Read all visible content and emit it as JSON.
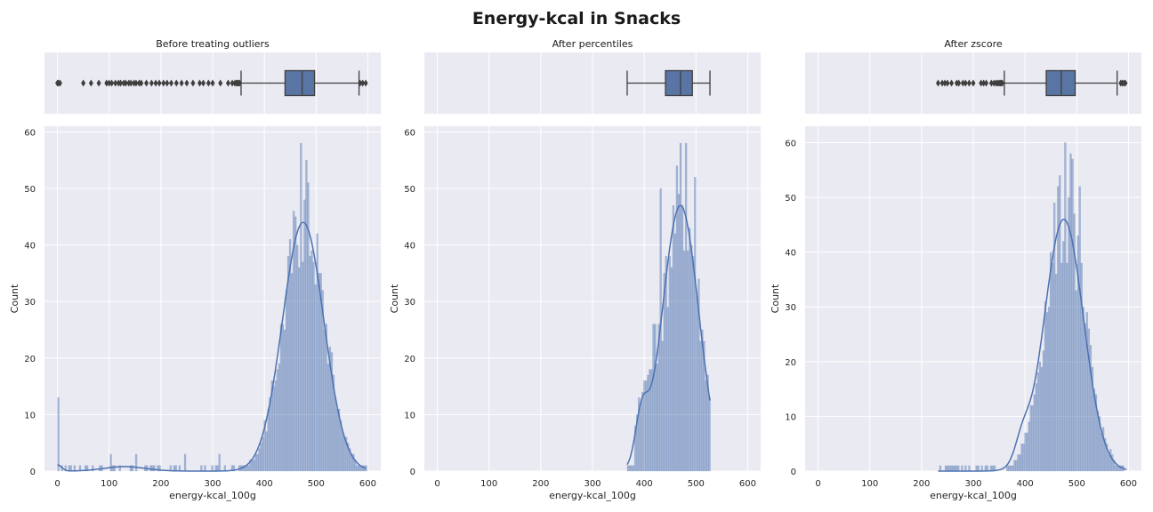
{
  "figure": {
    "title": "Energy-kcal in Snacks"
  },
  "colors": {
    "axes_background": "#eaeaf2",
    "grid": "#ffffff",
    "series": "#4c72b0",
    "box_fill": "#5975a4",
    "box_edge": "#3f3f3f"
  },
  "chart_data": [
    {
      "type": "box+histogram",
      "title": "Before treating outliers",
      "xlabel": "energy-kcal_100g",
      "ylabel": "Count",
      "xlim": [
        -25,
        625
      ],
      "ylim": [
        0,
        61
      ],
      "xticks": [
        0,
        100,
        200,
        300,
        400,
        500,
        600
      ],
      "yticks": [
        0,
        10,
        20,
        30,
        40,
        50,
        60
      ],
      "grid": true,
      "box": {
        "whislo": 355,
        "q1": 440,
        "median": 473,
        "q3": 497,
        "whishi": 583
      },
      "fliers": [
        0,
        2,
        5,
        50,
        65,
        80,
        95,
        100,
        105,
        112,
        118,
        122,
        128,
        132,
        138,
        142,
        148,
        152,
        158,
        162,
        172,
        182,
        190,
        197,
        205,
        212,
        220,
        230,
        240,
        250,
        262,
        275,
        282,
        292,
        300,
        315,
        330,
        338,
        343,
        346,
        348,
        350,
        352,
        585,
        590,
        596
      ],
      "peak": {
        "mean": 475,
        "sd": 40,
        "amplitude": 44
      },
      "kde_peak": 44,
      "histogram_spikes": [
        [
          1,
          13
        ],
        [
          100,
          3
        ],
        [
          150,
          3
        ],
        [
          245,
          3
        ],
        [
          313,
          3
        ],
        [
          470,
          58
        ],
        [
          480,
          55
        ]
      ]
    },
    {
      "type": "box+histogram",
      "title": "After percentiles",
      "xlabel": "energy-kcal_100g",
      "ylabel": "Count",
      "xlim": [
        -25,
        625
      ],
      "ylim": [
        0,
        61
      ],
      "xticks": [
        0,
        100,
        200,
        300,
        400,
        500,
        600
      ],
      "yticks": [
        0,
        10,
        20,
        30,
        40,
        50,
        60
      ],
      "grid": true,
      "box": {
        "whislo": 367,
        "q1": 441,
        "median": 470,
        "q3": 493,
        "whishi": 527
      },
      "fliers": [],
      "peak": {
        "mean": 470,
        "sd": 35,
        "amplitude": 47
      },
      "kde_peak": 47,
      "histogram_spikes": [
        [
          430,
          50
        ],
        [
          470,
          58
        ],
        [
          480,
          58
        ],
        [
          497,
          52
        ]
      ]
    },
    {
      "type": "box+histogram",
      "title": "After zscore",
      "xlabel": "energy-kcal_100g",
      "ylabel": "Count",
      "xlim": [
        -25,
        625
      ],
      "ylim": [
        0,
        63
      ],
      "xticks": [
        0,
        100,
        200,
        300,
        400,
        500,
        600
      ],
      "yticks": [
        0,
        10,
        20,
        30,
        40,
        50,
        60
      ],
      "grid": true,
      "box": {
        "whislo": 360,
        "q1": 441,
        "median": 470,
        "q3": 497,
        "whishi": 578
      },
      "fliers": [
        232,
        240,
        245,
        250,
        258,
        268,
        272,
        280,
        285,
        292,
        300,
        315,
        320,
        325,
        335,
        340,
        344,
        347,
        350,
        352,
        354,
        356,
        585,
        588,
        591,
        594
      ],
      "peak": {
        "mean": 475,
        "sd": 38,
        "amplitude": 46
      },
      "kde_peak": 46,
      "histogram_spikes": [
        [
          475,
          60
        ],
        [
          485,
          58
        ],
        [
          490,
          57
        ],
        [
          505,
          52
        ]
      ]
    }
  ]
}
